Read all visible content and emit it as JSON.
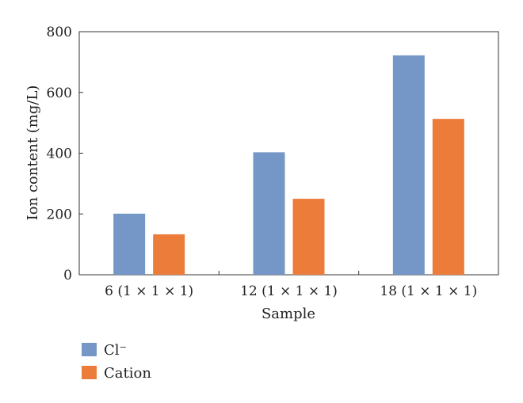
{
  "chart_data": {
    "type": "bar",
    "categories": [
      "6 (1 × 1 × 1)",
      "12 (1 × 1 × 1)",
      "18 (1 × 1 × 1)"
    ],
    "series": [
      {
        "name": "Cl⁻",
        "values": [
          201,
          403,
          722
        ],
        "color": "#7597c7"
      },
      {
        "name": "Cation",
        "values": [
          133,
          250,
          513
        ],
        "color": "#ec7c3a"
      }
    ],
    "xlabel": "Sample",
    "ylabel": "Ion content (mg/L)",
    "ylim": [
      0,
      800
    ],
    "yticks": [
      0,
      200,
      400,
      600,
      800
    ],
    "grid": false,
    "legend_position": "bottom-left"
  }
}
